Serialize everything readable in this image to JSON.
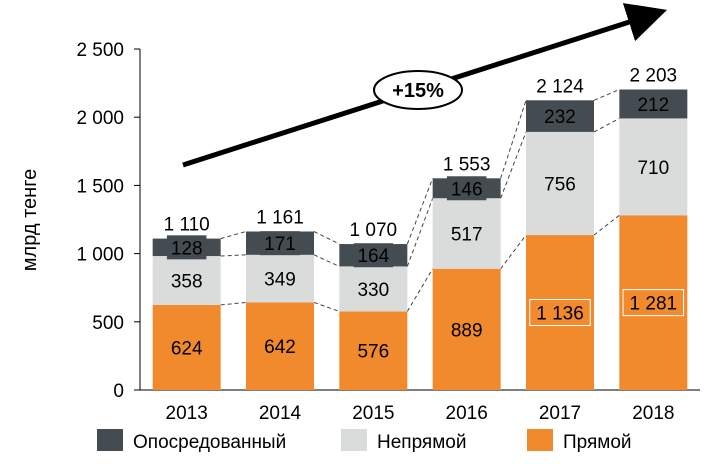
{
  "chart_data": {
    "type": "bar",
    "stacked": true,
    "ylabel": "млрд тенге",
    "ylim": [
      0,
      2500
    ],
    "y_ticks": [
      "0",
      "500",
      "1 000",
      "1 500",
      "2 000",
      "2 500"
    ],
    "y_tick_values": [
      0,
      500,
      1000,
      1500,
      2000,
      2500
    ],
    "categories": [
      "2013",
      "2014",
      "2015",
      "2016",
      "2017",
      "2018"
    ],
    "series": [
      {
        "name": "Прямой",
        "values": [
          624,
          642,
          576,
          889,
          1136,
          1281
        ],
        "labels": [
          "624",
          "642",
          "576",
          "889",
          "1 136",
          "1 281"
        ],
        "color": "#f08a2c"
      },
      {
        "name": "Непрямой",
        "values": [
          358,
          349,
          330,
          517,
          756,
          710
        ],
        "labels": [
          "358",
          "349",
          "330",
          "517",
          "756",
          "710"
        ],
        "color": "#dadcdc"
      },
      {
        "name": "Опосредованный",
        "values": [
          128,
          171,
          164,
          146,
          232,
          212
        ],
        "labels": [
          "128",
          "171",
          "164",
          "146",
          "232",
          "212"
        ],
        "color": "#454c51"
      }
    ],
    "totals": [
      "1 110",
      "1 161",
      "1 070",
      "1 553",
      "2 124",
      "2 203"
    ],
    "growth_label": "+15%",
    "legend_position": "bottom",
    "grid": false
  }
}
